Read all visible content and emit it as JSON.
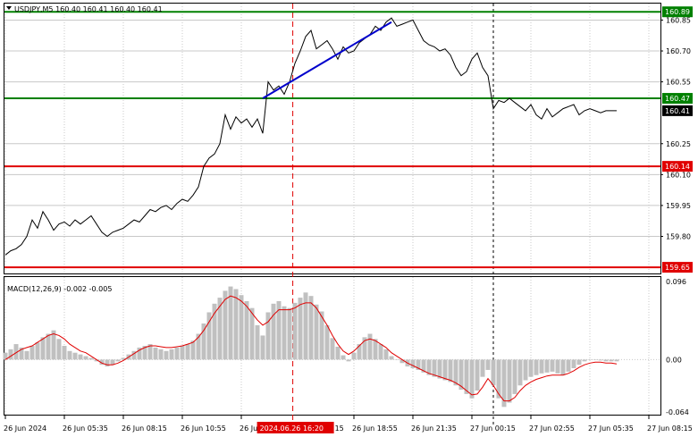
{
  "header": {
    "symbol_line": "USDJPY,M5  160.40 160.41 160.40 160.41",
    "macd_line": "MACD(12,26,9) -0.002 -0.005"
  },
  "colors": {
    "price_line": "#000000",
    "trend_line": "#0000cc",
    "resistance_line": "#008000",
    "support_line": "#e00000",
    "cursor_line": "#e00000",
    "macd_hist": "#c0c0c0",
    "macd_signal": "#e00000",
    "grid": "#c8c8c8",
    "time_highlight_bg": "#e00000"
  },
  "chart_data": [
    {
      "type": "line",
      "name": "price",
      "ylim": [
        159.62,
        160.93
      ],
      "y_ticks": [
        "160.85",
        "160.70",
        "160.55",
        "160.25",
        "160.10",
        "159.95",
        "159.80"
      ],
      "y_tick_values": [
        160.85,
        160.7,
        160.55,
        160.25,
        160.1,
        159.95,
        159.8
      ],
      "levels": [
        {
          "label": "160.89",
          "value": 160.89,
          "kind": "resistance"
        },
        {
          "label": "160.47",
          "value": 160.47,
          "kind": "resistance"
        },
        {
          "label": "160.14",
          "value": 160.14,
          "kind": "support"
        },
        {
          "label": "159.65",
          "value": 159.65,
          "kind": "support"
        }
      ],
      "current_price": {
        "label": "160.41",
        "value": 160.41
      },
      "trend_line": {
        "from": {
          "index": 48,
          "value": 160.47
        },
        "to": {
          "index": 72,
          "value": 160.84
        }
      },
      "x_count": 115,
      "values": [
        159.71,
        159.73,
        159.74,
        159.76,
        159.8,
        159.88,
        159.84,
        159.92,
        159.88,
        159.83,
        159.86,
        159.87,
        159.85,
        159.88,
        159.86,
        159.88,
        159.9,
        159.86,
        159.82,
        159.8,
        159.82,
        159.83,
        159.84,
        159.86,
        159.88,
        159.87,
        159.9,
        159.93,
        159.92,
        159.94,
        159.95,
        159.93,
        159.96,
        159.98,
        159.97,
        160.0,
        160.04,
        160.14,
        160.18,
        160.2,
        160.25,
        160.39,
        160.32,
        160.38,
        160.35,
        160.37,
        160.33,
        160.37,
        160.3,
        160.55,
        160.51,
        160.53,
        160.49,
        160.55,
        160.64,
        160.7,
        160.77,
        160.8,
        160.71,
        160.73,
        160.75,
        160.71,
        160.66,
        160.72,
        160.69,
        160.7,
        160.74,
        160.76,
        160.78,
        160.82,
        160.8,
        160.84,
        160.86,
        160.82,
        160.83,
        160.84,
        160.85,
        160.8,
        160.75,
        160.73,
        160.72,
        160.7,
        160.71,
        160.68,
        160.62,
        160.58,
        160.6,
        160.66,
        160.69,
        160.62,
        160.58,
        160.42,
        160.46,
        160.45,
        160.47,
        160.45,
        160.43,
        160.41,
        160.44,
        160.39,
        160.37,
        160.42,
        160.38,
        160.4,
        160.42,
        160.43,
        160.44,
        160.39,
        160.41,
        160.42,
        160.41,
        160.4,
        160.41,
        160.41,
        160.41
      ]
    },
    {
      "type": "bar",
      "name": "MACD(12,26,9)",
      "ylim": [
        -0.064,
        0.096
      ],
      "y_ticks": [
        "0.096",
        "0.00",
        "-0.064"
      ],
      "y_tick_values": [
        0.096,
        0.0,
        -0.064
      ],
      "current": {
        "macd": -0.002,
        "signal": -0.005
      },
      "hist": [
        0.008,
        0.012,
        0.018,
        0.014,
        0.01,
        0.016,
        0.02,
        0.026,
        0.03,
        0.034,
        0.024,
        0.016,
        0.01,
        0.008,
        0.006,
        0.004,
        0.002,
        -0.002,
        -0.006,
        -0.008,
        -0.006,
        -0.002,
        0.002,
        0.006,
        0.01,
        0.014,
        0.016,
        0.018,
        0.014,
        0.012,
        0.01,
        0.012,
        0.014,
        0.016,
        0.018,
        0.022,
        0.03,
        0.042,
        0.055,
        0.065,
        0.072,
        0.08,
        0.085,
        0.082,
        0.075,
        0.068,
        0.06,
        0.04,
        0.028,
        0.055,
        0.065,
        0.068,
        0.062,
        0.06,
        0.066,
        0.072,
        0.078,
        0.074,
        0.064,
        0.056,
        0.04,
        0.025,
        0.015,
        0.005,
        -0.002,
        0.008,
        0.018,
        0.026,
        0.03,
        0.024,
        0.018,
        0.012,
        0.004,
        0.0,
        -0.004,
        -0.008,
        -0.01,
        -0.012,
        -0.015,
        -0.018,
        -0.02,
        -0.022,
        -0.024,
        -0.026,
        -0.03,
        -0.035,
        -0.04,
        -0.045,
        -0.036,
        -0.02,
        -0.012,
        -0.03,
        -0.045,
        -0.055,
        -0.05,
        -0.04,
        -0.03,
        -0.024,
        -0.02,
        -0.018,
        -0.016,
        -0.015,
        -0.014,
        -0.016,
        -0.018,
        -0.014,
        -0.01,
        -0.006,
        -0.002,
        0.0,
        0.0,
        -0.001,
        -0.002,
        -0.002,
        -0.002
      ],
      "signal": [
        0.0,
        0.004,
        0.008,
        0.012,
        0.014,
        0.016,
        0.02,
        0.024,
        0.028,
        0.03,
        0.028,
        0.024,
        0.018,
        0.014,
        0.01,
        0.008,
        0.004,
        0.0,
        -0.004,
        -0.006,
        -0.006,
        -0.004,
        -0.001,
        0.003,
        0.007,
        0.011,
        0.014,
        0.016,
        0.016,
        0.015,
        0.014,
        0.014,
        0.015,
        0.016,
        0.018,
        0.02,
        0.026,
        0.034,
        0.044,
        0.054,
        0.062,
        0.07,
        0.074,
        0.072,
        0.068,
        0.062,
        0.054,
        0.046,
        0.04,
        0.044,
        0.052,
        0.058,
        0.058,
        0.058,
        0.06,
        0.064,
        0.066,
        0.066,
        0.06,
        0.05,
        0.04,
        0.028,
        0.018,
        0.01,
        0.006,
        0.01,
        0.016,
        0.022,
        0.024,
        0.022,
        0.018,
        0.014,
        0.008,
        0.004,
        0.0,
        -0.004,
        -0.007,
        -0.01,
        -0.013,
        -0.016,
        -0.018,
        -0.02,
        -0.022,
        -0.024,
        -0.027,
        -0.031,
        -0.036,
        -0.041,
        -0.04,
        -0.032,
        -0.022,
        -0.03,
        -0.04,
        -0.048,
        -0.048,
        -0.044,
        -0.036,
        -0.03,
        -0.026,
        -0.023,
        -0.021,
        -0.019,
        -0.018,
        -0.018,
        -0.018,
        -0.016,
        -0.013,
        -0.009,
        -0.006,
        -0.004,
        -0.003,
        -0.003,
        -0.004,
        -0.004,
        -0.005
      ]
    }
  ],
  "x_axis": {
    "labels": [
      "26 Jun 2024",
      "26 Jun 05:35",
      "26 Jun 08:15",
      "26 Jun 10:55",
      "26 Jun",
      "26 Jun 18:55",
      "26 Jun 21:35",
      "27 Jun 00:15",
      "27 Jun 02:55",
      "27 Jun 05:35",
      "27 Jun 08:15"
    ],
    "label_index": [
      0,
      11,
      22,
      33,
      44,
      65,
      76,
      87,
      98,
      109,
      120
    ],
    "highlight_label": "2024.06.26 16:20",
    "highlight_suffix": "15",
    "highlight_index": 53.6,
    "dashed_cursor_index": 91
  }
}
